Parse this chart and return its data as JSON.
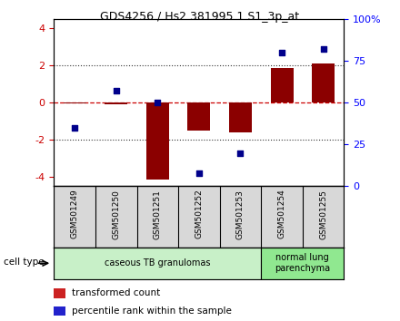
{
  "title": "GDS4256 / Hs2.381995.1.S1_3p_at",
  "samples": [
    "GSM501249",
    "GSM501250",
    "GSM501251",
    "GSM501252",
    "GSM501253",
    "GSM501254",
    "GSM501255"
  ],
  "transformed_counts": [
    -0.05,
    -0.1,
    -4.15,
    -1.5,
    -1.6,
    1.85,
    2.1
  ],
  "percentile_ranks": [
    35,
    57,
    50,
    8,
    20,
    80,
    82
  ],
  "ylim_left": [
    -4.5,
    4.5
  ],
  "ylim_right": [
    0,
    100
  ],
  "yticks_left": [
    -4,
    -2,
    0,
    2,
    4
  ],
  "yticks_right": [
    0,
    25,
    50,
    75,
    100
  ],
  "ytick_labels_right": [
    "0",
    "25",
    "50",
    "75",
    "100%"
  ],
  "cell_groups": [
    {
      "label": "caseous TB granulomas",
      "samples_range": [
        0,
        4
      ],
      "color": "#c8f0c8"
    },
    {
      "label": "normal lung\nparenchyma",
      "samples_range": [
        5,
        6
      ],
      "color": "#90e890"
    }
  ],
  "bar_color": "#8b0000",
  "dot_color": "#00008b",
  "zero_line_color": "#cc0000",
  "dotted_line_color": "#333333",
  "cell_type_label": "cell type",
  "legend_items": [
    "transformed count",
    "percentile rank within the sample"
  ],
  "legend_colors": [
    "#cc2222",
    "#2222cc"
  ],
  "sample_box_color": "#d8d8d8",
  "plot_bg": "#ffffff",
  "n_samples": 7
}
